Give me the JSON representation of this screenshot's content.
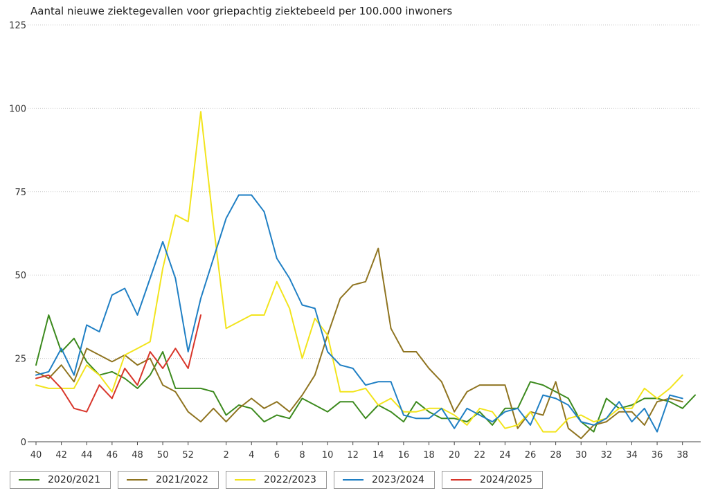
{
  "chart_data": {
    "type": "line",
    "title": "Aantal nieuwe ziektegevallen voor griepachtig ziektebeeld per 100.000 inwoners",
    "xlabel": "",
    "ylabel": "",
    "ylim": [
      0,
      125
    ],
    "yticks": [
      0,
      25,
      50,
      75,
      100,
      125
    ],
    "grid": true,
    "legend": "bottom",
    "x_weeks": [
      40,
      41,
      42,
      43,
      44,
      45,
      46,
      47,
      48,
      49,
      50,
      51,
      52,
      53,
      1,
      2,
      3,
      4,
      5,
      6,
      7,
      8,
      9,
      10,
      11,
      12,
      13,
      14,
      15,
      16,
      17,
      18,
      19,
      20,
      21,
      22,
      23,
      24,
      25,
      26,
      27,
      28,
      29,
      30,
      31,
      32,
      33,
      34,
      35,
      36,
      37,
      38,
      39
    ],
    "x_tick_labels": [
      "40",
      "42",
      "44",
      "46",
      "48",
      "50",
      "52",
      "2",
      "4",
      "6",
      "8",
      "10",
      "12",
      "14",
      "16",
      "18",
      "20",
      "22",
      "24",
      "26",
      "28",
      "30",
      "32",
      "34",
      "36",
      "38"
    ],
    "series": [
      {
        "name": "2020/2021",
        "color": "#3c8a1e",
        "values": [
          23,
          38,
          27,
          31,
          24,
          20,
          21,
          19,
          16,
          20,
          27,
          16,
          16,
          16,
          15,
          8,
          11,
          10,
          6,
          8,
          7,
          13,
          11,
          9,
          12,
          12,
          7,
          11,
          9,
          6,
          12,
          9,
          7,
          7,
          6,
          9,
          5,
          10,
          10,
          18,
          17,
          15,
          13,
          6,
          3,
          13,
          10,
          11,
          13,
          13,
          12,
          10,
          14
        ]
      },
      {
        "name": "2021/2022",
        "color": "#8f7420",
        "values": [
          21,
          19,
          23,
          18,
          28,
          26,
          24,
          26,
          23,
          25,
          17,
          15,
          9,
          6,
          10,
          6,
          10,
          13,
          10,
          12,
          9,
          14,
          20,
          32,
          43,
          47,
          48,
          58,
          34,
          27,
          27,
          22,
          18,
          9,
          15,
          17,
          17,
          17,
          4,
          9,
          8,
          18,
          4,
          1,
          5,
          6,
          9,
          9,
          5,
          12,
          13,
          12,
          null
        ]
      },
      {
        "name": "2022/2023",
        "color": "#f2e41c",
        "values": [
          17,
          16,
          16,
          16,
          23,
          20,
          15,
          26,
          28,
          30,
          52,
          68,
          66,
          99,
          65,
          34,
          36,
          38,
          38,
          48,
          40,
          25,
          37,
          32,
          15,
          15,
          16,
          11,
          13,
          9,
          9,
          10,
          10,
          8,
          5,
          10,
          9,
          4,
          5,
          9,
          3,
          3,
          7,
          8,
          6,
          7,
          10,
          10,
          16,
          13,
          16,
          20,
          null
        ]
      },
      {
        "name": "2023/2024",
        "color": "#1f7fc4",
        "values": [
          20,
          21,
          28,
          20,
          35,
          33,
          44,
          46,
          38,
          49,
          60,
          49,
          27,
          43,
          55,
          67,
          74,
          74,
          69,
          55,
          49,
          41,
          40,
          27,
          23,
          22,
          17,
          18,
          18,
          8,
          7,
          7,
          10,
          4,
          10,
          8,
          6,
          9,
          10,
          5,
          14,
          13,
          11,
          6,
          5,
          7,
          12,
          6,
          10,
          3,
          14,
          13,
          null
        ]
      },
      {
        "name": "2024/2025",
        "color": "#d8352a",
        "values": [
          19,
          20,
          16,
          10,
          9,
          17,
          13,
          22,
          17,
          27,
          22,
          28,
          22,
          38,
          null,
          null,
          null,
          null,
          null,
          null,
          null,
          null,
          null,
          null,
          null,
          null,
          null,
          null,
          null,
          null,
          null,
          null,
          null,
          null,
          null,
          null,
          null,
          null,
          null,
          null,
          null,
          null,
          null,
          null,
          null,
          null,
          null,
          null,
          null,
          null,
          null,
          null,
          null
        ]
      }
    ]
  }
}
